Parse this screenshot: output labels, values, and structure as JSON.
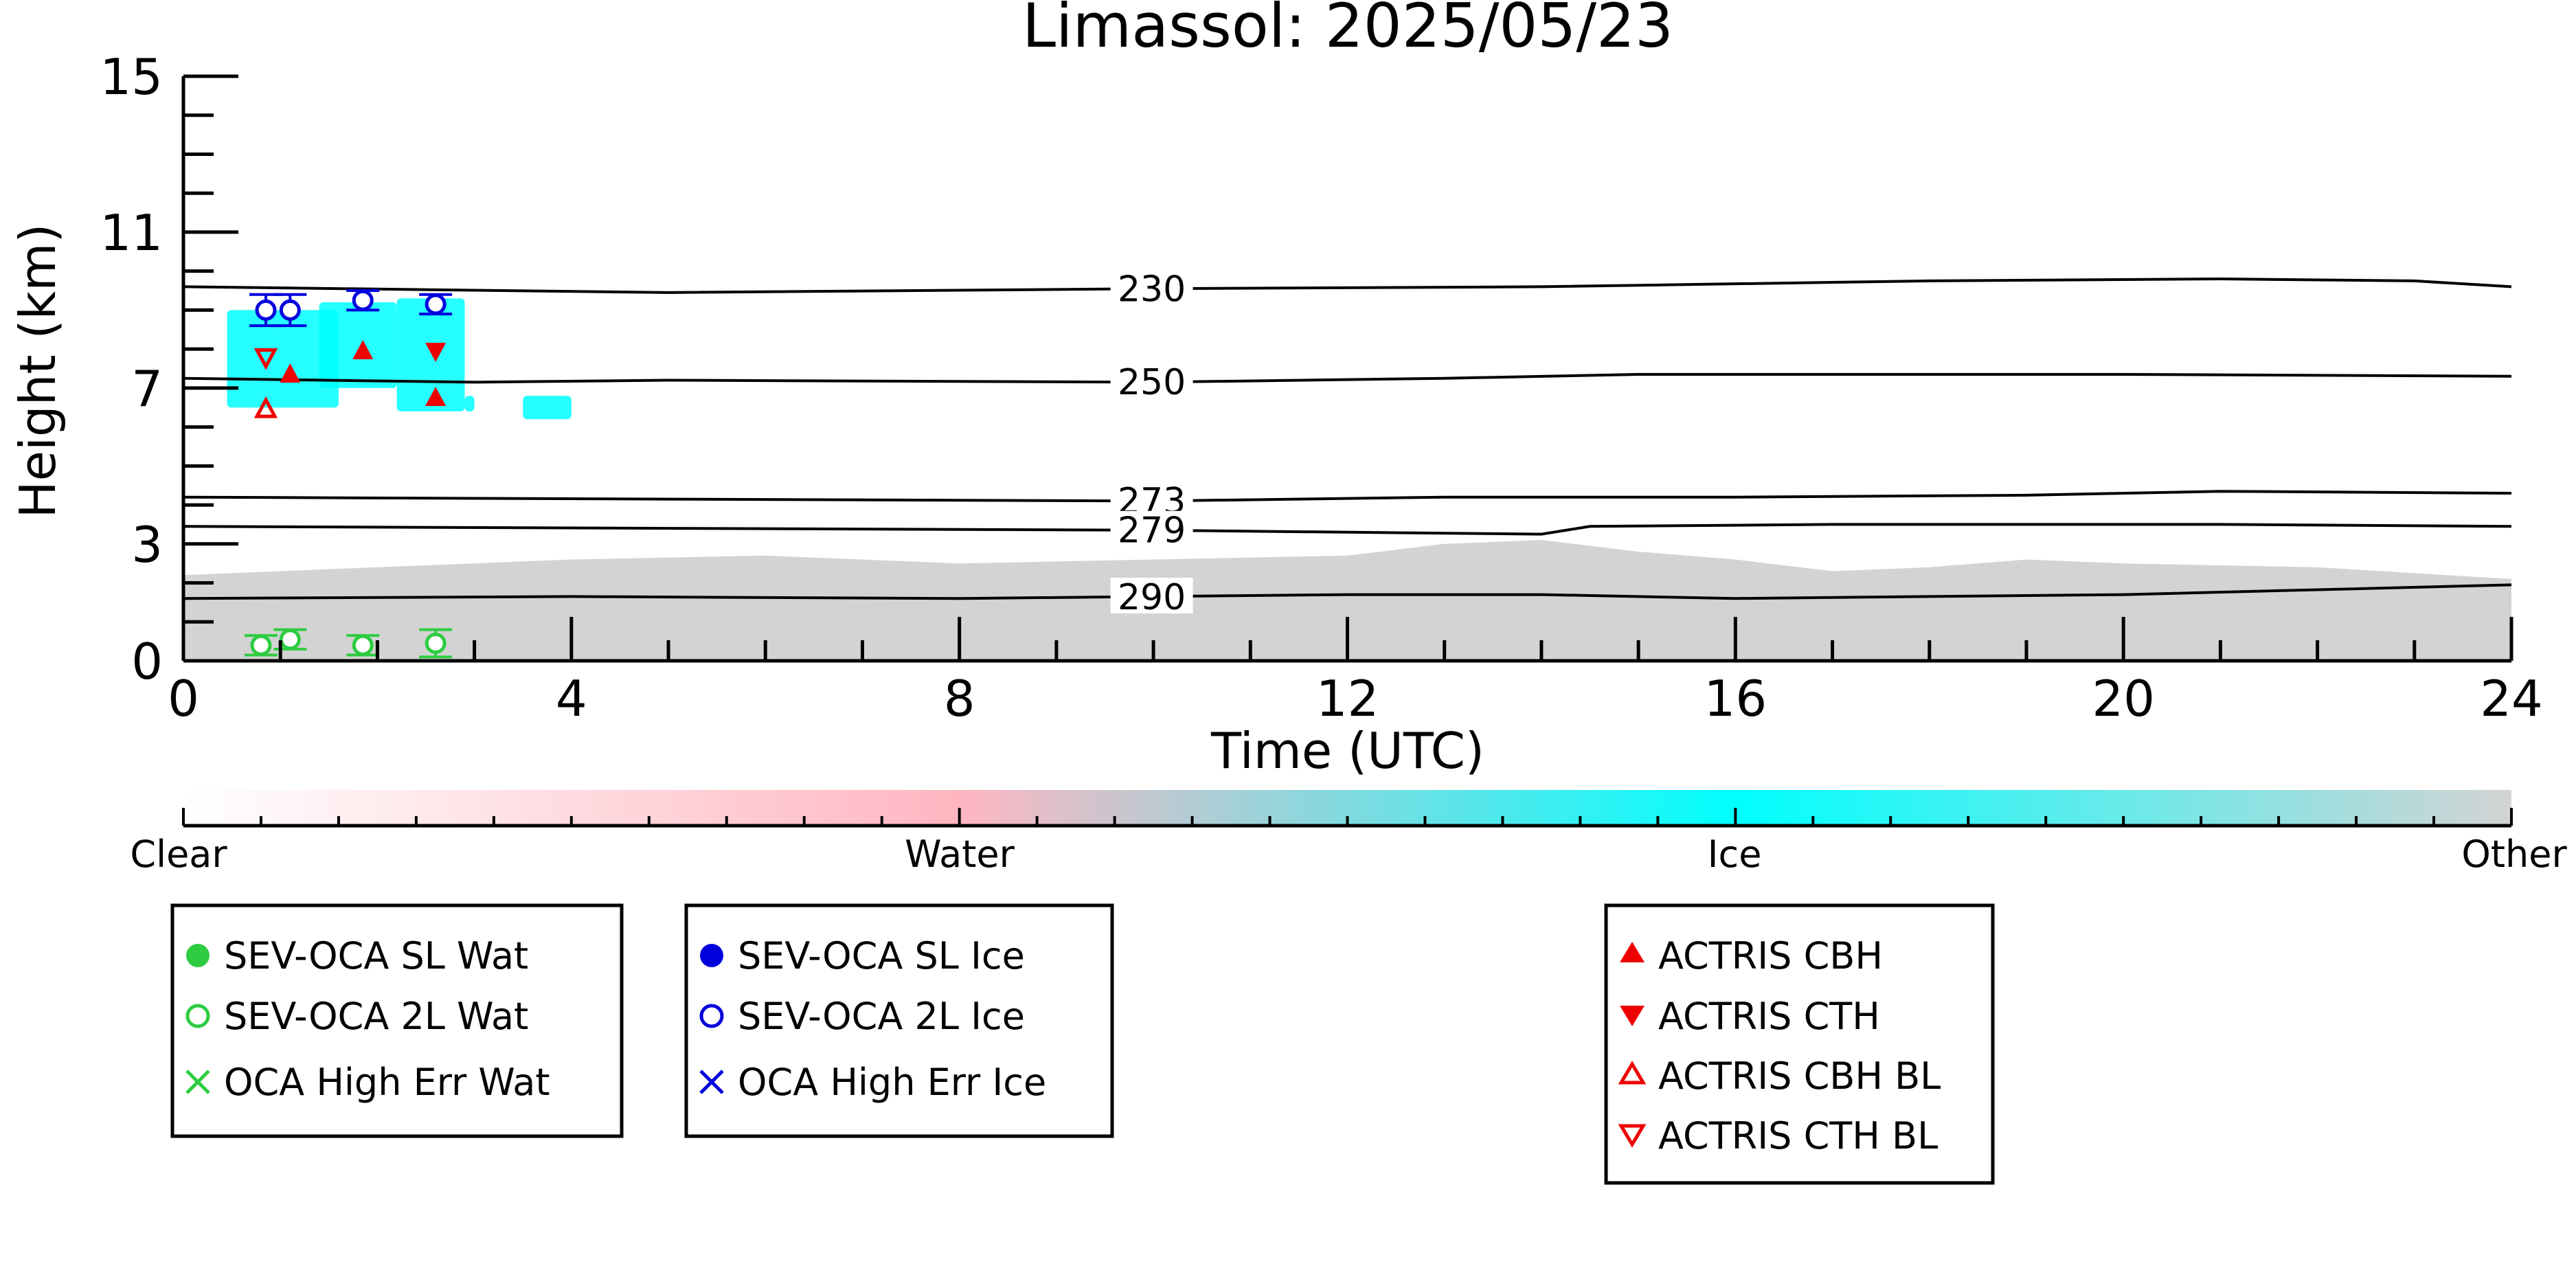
{
  "chart_data": {
    "type": "scatter",
    "title": "Limassol: 2025/05/23",
    "xlabel": "Time (UTC)",
    "ylabel": "Height (km)",
    "xlim": [
      0,
      24
    ],
    "ylim": [
      0,
      15
    ],
    "x_ticks": [
      0,
      4,
      8,
      12,
      16,
      20,
      24
    ],
    "x_tick_labels": [
      "0",
      "4",
      "8",
      "12",
      "16",
      "20",
      "24"
    ],
    "y_ticks": [
      0,
      3,
      7,
      11,
      15
    ],
    "y_tick_labels": [
      "0",
      "3",
      "7",
      "11",
      "15"
    ],
    "isotherms": [
      {
        "label": "230",
        "label_x": 9.6,
        "points": [
          [
            0,
            9.6
          ],
          [
            5,
            9.45
          ],
          [
            10,
            9.55
          ],
          [
            14,
            9.6
          ],
          [
            18,
            9.75
          ],
          [
            21,
            9.8
          ],
          [
            23,
            9.75
          ],
          [
            24,
            9.6
          ]
        ]
      },
      {
        "label": "250",
        "label_x": 9.6,
        "points": [
          [
            0,
            7.25
          ],
          [
            3,
            7.15
          ],
          [
            5,
            7.2
          ],
          [
            10,
            7.15
          ],
          [
            13,
            7.25
          ],
          [
            15,
            7.35
          ],
          [
            20,
            7.35
          ],
          [
            24,
            7.3
          ]
        ]
      },
      {
        "label": "273",
        "label_x": 9.6,
        "points": [
          [
            0,
            4.2
          ],
          [
            5,
            4.15
          ],
          [
            10,
            4.1
          ],
          [
            13,
            4.2
          ],
          [
            16,
            4.2
          ],
          [
            19,
            4.25
          ],
          [
            21,
            4.35
          ],
          [
            24,
            4.3
          ]
        ]
      },
      {
        "label": "279",
        "label_x": 9.6,
        "points": [
          [
            0,
            3.45
          ],
          [
            5,
            3.4
          ],
          [
            10,
            3.35
          ],
          [
            14,
            3.25
          ],
          [
            14.5,
            3.45
          ],
          [
            17,
            3.5
          ],
          [
            21,
            3.5
          ],
          [
            24,
            3.45
          ]
        ]
      },
      {
        "label": "290",
        "label_x": 9.6,
        "points": [
          [
            0,
            1.6
          ],
          [
            4,
            1.65
          ],
          [
            8,
            1.6
          ],
          [
            12,
            1.7
          ],
          [
            14,
            1.7
          ],
          [
            16,
            1.6
          ],
          [
            20,
            1.7
          ],
          [
            24,
            1.95
          ]
        ]
      }
    ],
    "background_layer": {
      "class": "Other",
      "top_points": [
        [
          0,
          2.2
        ],
        [
          2,
          2.4
        ],
        [
          4,
          2.6
        ],
        [
          6,
          2.7
        ],
        [
          8,
          2.5
        ],
        [
          10,
          2.6
        ],
        [
          12,
          2.7
        ],
        [
          13,
          3.0
        ],
        [
          14,
          3.1
        ],
        [
          15,
          2.8
        ],
        [
          16,
          2.6
        ],
        [
          17,
          2.3
        ],
        [
          18,
          2.4
        ],
        [
          19,
          2.6
        ],
        [
          20,
          2.5
        ],
        [
          22,
          2.4
        ],
        [
          24,
          2.1
        ]
      ]
    },
    "ice_cloud_segments": [
      {
        "x0": 0.45,
        "x1": 1.6,
        "y0": 6.5,
        "y1": 9.0
      },
      {
        "x0": 1.4,
        "x1": 2.2,
        "y0": 7.0,
        "y1": 9.2
      },
      {
        "x0": 2.2,
        "x1": 2.9,
        "y0": 6.4,
        "y1": 9.3
      },
      {
        "x0": 2.9,
        "x1": 3.0,
        "y0": 6.4,
        "y1": 6.8
      },
      {
        "x0": 3.5,
        "x1": 4.0,
        "y0": 6.2,
        "y1": 6.8
      }
    ],
    "series": [
      {
        "name": "SEV-OCA 2L Wat",
        "marker": "open-circle",
        "color": "#2ecc40",
        "points": [
          {
            "x": 0.8,
            "y": 0.4,
            "err": 0.25
          },
          {
            "x": 1.1,
            "y": 0.55,
            "err": 0.25
          },
          {
            "x": 1.85,
            "y": 0.4,
            "err": 0.25
          },
          {
            "x": 2.6,
            "y": 0.45,
            "err": 0.35
          }
        ]
      },
      {
        "name": "SEV-OCA 2L Ice",
        "marker": "open-circle",
        "color": "#0000dd",
        "points": [
          {
            "x": 0.85,
            "y": 9.0,
            "err": 0.4
          },
          {
            "x": 1.1,
            "y": 9.0,
            "err": 0.4
          },
          {
            "x": 1.85,
            "y": 9.25,
            "err": 0.25
          },
          {
            "x": 2.6,
            "y": 9.15,
            "err": 0.25
          }
        ]
      },
      {
        "name": "ACTRIS CBH",
        "marker": "triangle-up",
        "color": "#ee0000",
        "points": [
          {
            "x": 1.1,
            "y": 7.35
          },
          {
            "x": 1.85,
            "y": 7.95
          },
          {
            "x": 2.6,
            "y": 6.75
          }
        ]
      },
      {
        "name": "ACTRIS CTH",
        "marker": "triangle-down",
        "color": "#ee0000",
        "points": [
          {
            "x": 2.6,
            "y": 7.95
          }
        ]
      },
      {
        "name": "ACTRIS CBH BL",
        "marker": "open-triangle-up",
        "color": "#ee0000",
        "points": [
          {
            "x": 0.85,
            "y": 6.45
          }
        ]
      },
      {
        "name": "ACTRIS CTH BL",
        "marker": "open-triangle-down",
        "color": "#ee0000",
        "points": [
          {
            "x": 0.85,
            "y": 7.8
          }
        ]
      }
    ],
    "colorbar": {
      "labels": [
        "Clear",
        "Water",
        "Ice",
        "Other"
      ],
      "colors": [
        "#ffffff",
        "#ffb6c1",
        "#00ffff",
        "#d3d3d3"
      ]
    },
    "legends": [
      {
        "items": [
          {
            "label": "SEV-OCA SL Wat",
            "marker": "filled-circle",
            "color": "#2ecc40"
          },
          {
            "label": "SEV-OCA 2L Wat",
            "marker": "open-circle",
            "color": "#2ecc40"
          },
          {
            "label": "OCA High Err Wat",
            "marker": "x",
            "color": "#2ecc40"
          }
        ]
      },
      {
        "items": [
          {
            "label": "SEV-OCA SL Ice",
            "marker": "filled-circle",
            "color": "#0000dd"
          },
          {
            "label": "SEV-OCA 2L Ice",
            "marker": "open-circle",
            "color": "#0000dd"
          },
          {
            "label": "OCA High Err Ice",
            "marker": "x",
            "color": "#0000dd"
          }
        ]
      },
      {
        "items": [
          {
            "label": "ACTRIS CBH",
            "marker": "triangle-up",
            "color": "#ee0000"
          },
          {
            "label": "ACTRIS CTH",
            "marker": "triangle-down",
            "color": "#ee0000"
          },
          {
            "label": "ACTRIS CBH BL",
            "marker": "open-triangle-up",
            "color": "#ee0000"
          },
          {
            "label": "ACTRIS CTH BL",
            "marker": "open-triangle-down",
            "color": "#ee0000"
          }
        ]
      }
    ]
  }
}
